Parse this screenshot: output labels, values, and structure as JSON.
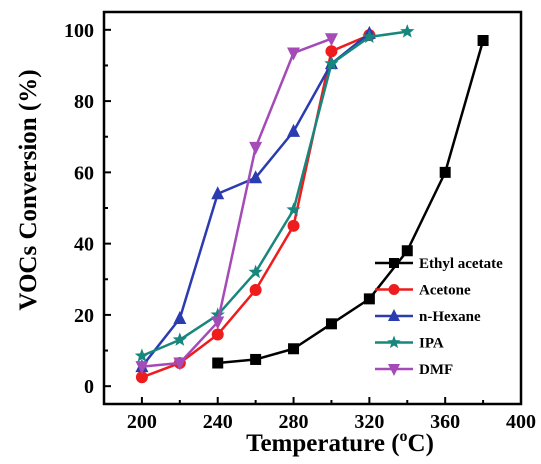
{
  "chart_data": {
    "type": "line",
    "xlabel": "Temperature (",
    "xlabel_sup": "o",
    "xlabel_unit": "C)",
    "ylabel": "VOCs Conversion (%)",
    "xlim": [
      180,
      400
    ],
    "ylim": [
      -5,
      105
    ],
    "x_ticks": [
      "200",
      "240",
      "280",
      "320",
      "360",
      "400"
    ],
    "y_ticks": [
      "0",
      "20",
      "40",
      "60",
      "80",
      "100"
    ],
    "grid": false,
    "legend_position": "bottom-right",
    "series": [
      {
        "name": "Ethyl acetate",
        "color": "#000000",
        "marker": "square",
        "x": [
          240,
          260,
          280,
          300,
          320,
          340,
          360,
          380
        ],
        "y": [
          6.5,
          7.5,
          10.5,
          17.5,
          24.5,
          38,
          60,
          97
        ]
      },
      {
        "name": "Acetone",
        "color": "#ee1c1c",
        "marker": "circle",
        "x": [
          200,
          220,
          240,
          260,
          280,
          300,
          320
        ],
        "y": [
          2.5,
          6.5,
          14.5,
          27,
          45,
          94,
          98.5
        ]
      },
      {
        "name": "n-Hexane",
        "color": "#2b3bb0",
        "marker": "triangle-up",
        "x": [
          200,
          220,
          240,
          260,
          280,
          300,
          320
        ],
        "y": [
          5.5,
          19,
          54,
          58.5,
          71.5,
          90.5,
          99
        ]
      },
      {
        "name": "IPA",
        "color": "#17877e",
        "marker": "star",
        "x": [
          200,
          220,
          240,
          260,
          280,
          300,
          320,
          340
        ],
        "y": [
          8.5,
          13,
          20,
          32,
          49.5,
          90.5,
          98,
          99.5
        ]
      },
      {
        "name": "DMF",
        "color": "#a44bb8",
        "marker": "triangle-down",
        "x": [
          200,
          220,
          240,
          260,
          280,
          300
        ],
        "y": [
          5.5,
          6.5,
          18,
          67,
          93.5,
          97.5
        ]
      }
    ]
  }
}
